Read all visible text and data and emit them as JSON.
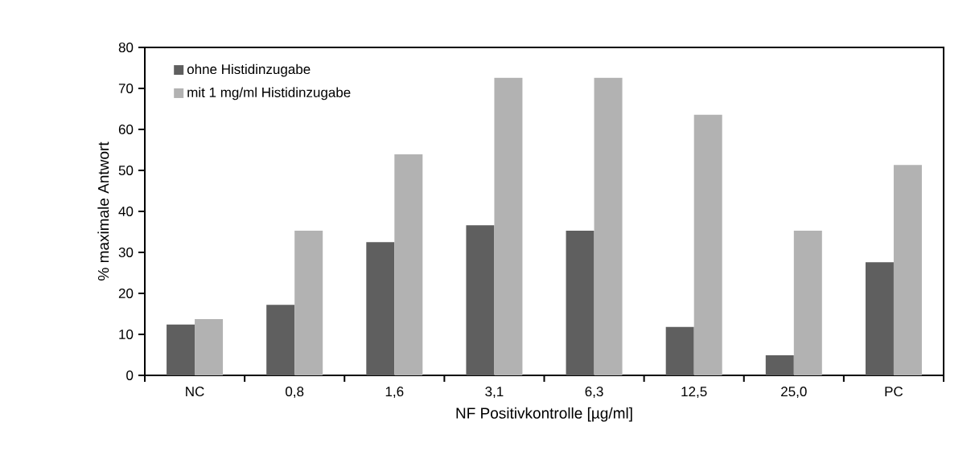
{
  "chart_data": {
    "type": "bar",
    "xlabel": "NF Positivkontrolle [µg/ml]",
    "ylabel": "% maximale Antwort",
    "categories": [
      "NC",
      "0,8",
      "1,6",
      "3,1",
      "6,3",
      "12,5",
      "25,0",
      "PC"
    ],
    "series": [
      {
        "name": "ohne Histidinzugabe",
        "color": "#5f5f5f",
        "values": [
          12.4,
          17.2,
          32.5,
          36.6,
          35.3,
          11.8,
          4.9,
          27.6
        ]
      },
      {
        "name": "mit 1 mg/ml Histidinzugabe",
        "color": "#b2b2b2",
        "values": [
          13.7,
          35.3,
          53.9,
          72.6,
          72.6,
          63.6,
          35.3,
          51.3
        ]
      }
    ],
    "ylim": [
      0,
      80
    ],
    "yticks": [
      0,
      10,
      20,
      30,
      40,
      50,
      60,
      70,
      80
    ],
    "grid": false,
    "legend": "top left"
  }
}
